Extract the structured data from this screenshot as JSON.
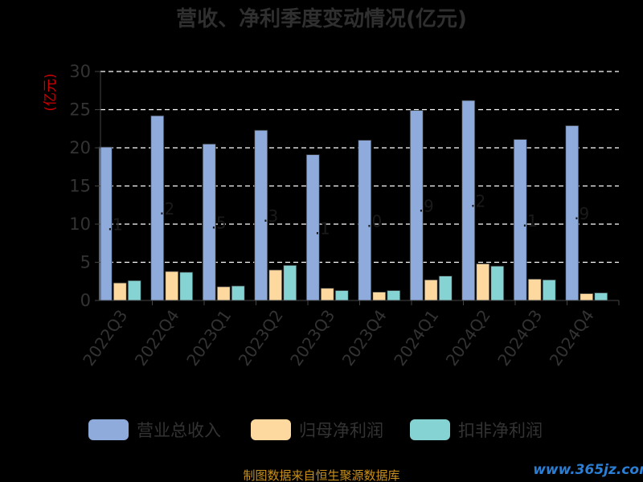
{
  "chart_data": {
    "type": "bar",
    "title": "营收、净利季度变动情况(亿元)",
    "ylabel": "(亿元)",
    "xlabel": "",
    "ylim": [
      0,
      30
    ],
    "yticks": [
      0,
      5,
      10,
      15,
      20,
      25,
      30
    ],
    "grid": true,
    "legend_position": "bottom",
    "categories": [
      "2022Q3",
      "2022Q4",
      "2023Q1",
      "2023Q2",
      "2023Q3",
      "2023Q4",
      "2024Q1",
      "2024Q2",
      "2024Q3",
      "2024Q4"
    ],
    "series": [
      {
        "name": "营业总收入",
        "color": "#8eabdc",
        "values": [
          20.1,
          24.2,
          20.5,
          22.3,
          19.1,
          21.0,
          24.9,
          26.2,
          21.1,
          22.9
        ]
      },
      {
        "name": "归母净利润",
        "color": "#fdd9a0",
        "values": [
          2.3,
          3.8,
          1.8,
          4.0,
          1.6,
          1.1,
          2.7,
          4.8,
          2.8,
          0.9
        ]
      },
      {
        "name": "扣非净利润",
        "color": "#86d3d3",
        "values": [
          2.6,
          3.7,
          1.9,
          4.6,
          1.3,
          1.3,
          3.2,
          4.5,
          2.7,
          1.0
        ]
      }
    ],
    "data_labels": [
      ".1",
      ".2",
      ".5",
      ".3",
      ".1",
      ".0",
      ".9",
      ".2",
      ".1",
      ".9"
    ]
  },
  "footer": {
    "source": "制图数据来自恒生聚源数据库",
    "watermark": "www.365jz.com"
  },
  "colors": {
    "background": "#000000",
    "grid": "#ffffff",
    "axis": "#444444"
  }
}
